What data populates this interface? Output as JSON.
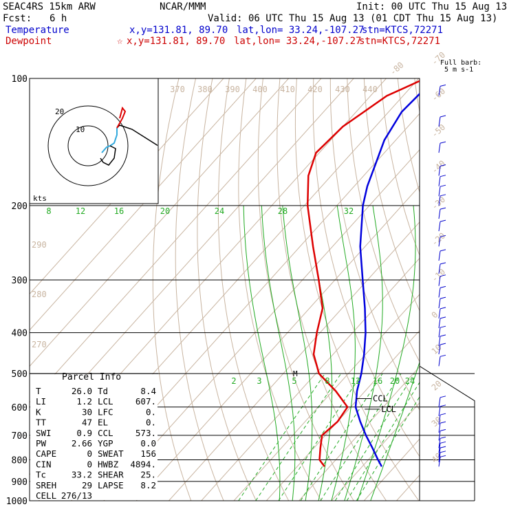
{
  "header": {
    "model": "SEAC4RS 15km ARW",
    "source": "NCAR/MMM",
    "init": "Init: 00 UTC Thu 15 Aug 13",
    "fcst_label": "Fcst:",
    "fcst_value": "6 h",
    "valid": "Valid: 06 UTC Thu 15 Aug 13 (01 CDT Thu 15 Aug 13)",
    "temperature_label": "Temperature",
    "temperature_xy": "x,y=131.81, 89.70",
    "temperature_latlon": "lat,lon= 33.24,-107.27",
    "temperature_stn": "stn=KTCS,72271",
    "dewpoint_label": "Dewpoint",
    "dewpoint_xy": "x,y=131.81, 89.70",
    "dewpoint_latlon": "lat,lon= 33.24,-107.27",
    "dewpoint_stn": "stn=KTCS,72271",
    "barb_legend_1": "Full barb:",
    "barb_legend_2": "5 m s-1"
  },
  "hodograph": {
    "units": "kts",
    "rings": [
      "10",
      "20"
    ]
  },
  "parcel_info": {
    "title": "Parcel Info",
    "rows": [
      {
        "k1": "T",
        "v1": "26.0",
        "k2": "Td",
        "v2": "8.4"
      },
      {
        "k1": "LI",
        "v1": "1.2",
        "k2": "LCL",
        "v2": "607."
      },
      {
        "k1": "K",
        "v1": "30",
        "k2": "LFC",
        "v2": "0."
      },
      {
        "k1": "TT",
        "v1": "47",
        "k2": "EL",
        "v2": "0."
      },
      {
        "k1": "SWI",
        "v1": "0.9",
        "k2": "CCL",
        "v2": "573."
      },
      {
        "k1": "PW",
        "v1": "2.66",
        "k2": "YGP",
        "v2": "0.0"
      },
      {
        "k1": "CAPE",
        "v1": "0",
        "k2": "SWEAT",
        "v2": "156"
      },
      {
        "k1": "CIN",
        "v1": "0",
        "k2": "HWBZ",
        "v2": "4894."
      },
      {
        "k1": "Tc",
        "v1": "33.2",
        "k2": "SHEAR",
        "v2": "25."
      },
      {
        "k1": "SREH",
        "v1": "29",
        "k2": "LAPSE",
        "v2": "8.2"
      },
      {
        "k1": "CELL",
        "v1": "276/13",
        "k2": "",
        "v2": ""
      }
    ]
  },
  "colors": {
    "temperature": "#0000dd",
    "dewpoint": "#dd0000",
    "isotherm": "#c8b4a0",
    "dry_adiabat": "#c8b4a0",
    "moist_adiabat": "#22aa22",
    "mixing_ratio": "#22aa22",
    "wind_barb": "#0000cc",
    "isobar": "#000000"
  },
  "chart_data": {
    "type": "line",
    "y_axis": "pressure_hPa",
    "ylim": [
      1000,
      100
    ],
    "y_scale": "log",
    "isobar_labels": [
      100,
      200,
      300,
      400,
      500,
      600,
      700,
      800,
      900,
      1000
    ],
    "isotherm_labels": [
      "-80",
      "-70",
      "-60",
      "-50",
      "-40",
      "-30",
      "-20",
      "-10",
      "0",
      "10",
      "20",
      "30",
      "40"
    ],
    "theta_labels_top": [
      "370",
      "380",
      "390",
      "400",
      "410",
      "420",
      "430",
      "440"
    ],
    "theta_labels_left": [
      "290",
      "280",
      "270"
    ],
    "moist_adiabat_labels": [
      "8",
      "12",
      "16",
      "20",
      "24",
      "28",
      "32"
    ],
    "mixing_ratio_labels": [
      "2",
      "3",
      "5",
      "8",
      "12",
      "16",
      "20",
      "24"
    ],
    "markers": [
      {
        "label": "CCL",
        "p": 573
      },
      {
        "label": "LCL",
        "p": 607
      },
      {
        "label": "M",
        "p": 500
      }
    ],
    "series": [
      {
        "name": "Temperature",
        "points": [
          {
            "p": 100,
            "t": -65.0
          },
          {
            "p": 120,
            "t": -66.0
          },
          {
            "p": 140,
            "t": -63.5
          },
          {
            "p": 160,
            "t": -59.5
          },
          {
            "p": 180,
            "t": -56.0
          },
          {
            "p": 200,
            "t": -52.0
          },
          {
            "p": 250,
            "t": -41.5
          },
          {
            "p": 300,
            "t": -31.5
          },
          {
            "p": 350,
            "t": -23.0
          },
          {
            "p": 400,
            "t": -16.0
          },
          {
            "p": 450,
            "t": -10.5
          },
          {
            "p": 500,
            "t": -6.0
          },
          {
            "p": 550,
            "t": -2.5
          },
          {
            "p": 600,
            "t": 1.5
          },
          {
            "p": 650,
            "t": 7.0
          },
          {
            "p": 700,
            "t": 12.5
          },
          {
            "p": 750,
            "t": 18.0
          },
          {
            "p": 800,
            "t": 23.0
          },
          {
            "p": 830,
            "t": 26.0
          }
        ]
      },
      {
        "name": "Dewpoint",
        "points": [
          {
            "p": 100,
            "t": -68.0
          },
          {
            "p": 110,
            "t": -75.0
          },
          {
            "p": 130,
            "t": -80.0
          },
          {
            "p": 150,
            "t": -81.0
          },
          {
            "p": 170,
            "t": -77.0
          },
          {
            "p": 200,
            "t": -69.0
          },
          {
            "p": 250,
            "t": -56.0
          },
          {
            "p": 300,
            "t": -45.0
          },
          {
            "p": 350,
            "t": -36.0
          },
          {
            "p": 400,
            "t": -31.0
          },
          {
            "p": 450,
            "t": -26.0
          },
          {
            "p": 500,
            "t": -19.0
          },
          {
            "p": 550,
            "t": -9.0
          },
          {
            "p": 600,
            "t": -1.0
          },
          {
            "p": 650,
            "t": 0.0
          },
          {
            "p": 700,
            "t": -1.0
          },
          {
            "p": 750,
            "t": 2.0
          },
          {
            "p": 800,
            "t": 5.0
          },
          {
            "p": 830,
            "t": 8.4
          }
        ]
      }
    ],
    "winds": [
      {
        "p": 110
      },
      {
        "p": 130
      },
      {
        "p": 150
      },
      {
        "p": 170
      },
      {
        "p": 180
      },
      {
        "p": 190
      },
      {
        "p": 200
      },
      {
        "p": 215
      },
      {
        "p": 230
      },
      {
        "p": 250
      },
      {
        "p": 270
      },
      {
        "p": 290
      },
      {
        "p": 310
      },
      {
        "p": 330
      },
      {
        "p": 350
      },
      {
        "p": 370
      },
      {
        "p": 390
      },
      {
        "p": 410
      },
      {
        "p": 430
      },
      {
        "p": 450
      },
      {
        "p": 480
      },
      {
        "p": 600
      },
      {
        "p": 630
      },
      {
        "p": 660
      },
      {
        "p": 690
      },
      {
        "p": 720
      },
      {
        "p": 750
      },
      {
        "p": 770
      },
      {
        "p": 790
      },
      {
        "p": 810
      },
      {
        "p": 830
      }
    ]
  }
}
